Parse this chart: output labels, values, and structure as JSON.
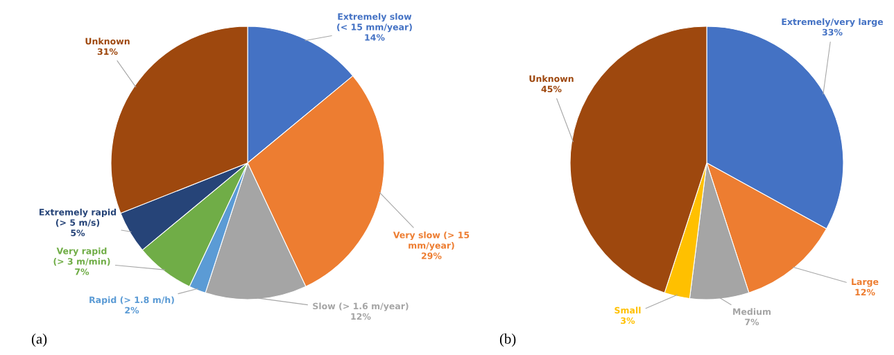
{
  "chart_data": [
    {
      "type": "pie",
      "title": "(a)",
      "categories": [
        "Extremely slow\n(< 15 mm/year)",
        "Very slow (> 15\nmm/year)",
        "Slow (> 1.6 m/year)",
        "Rapid (> 1.8 m/h)",
        "Very rapid\n(> 3 m/min)",
        "Extremely rapid\n(> 5 m/s)",
        "Unknown"
      ],
      "values": [
        14,
        29,
        12,
        2,
        7,
        5,
        31
      ],
      "value_labels": [
        "14%",
        "29%",
        "12%",
        "2%",
        "7%",
        "5%",
        "31%"
      ],
      "colors": [
        "#4472c4",
        "#ed7d31",
        "#a5a5a5",
        "#5b9bd5",
        "#70ad47",
        "#264478",
        "#9e480e"
      ]
    },
    {
      "type": "pie",
      "title": "(b)",
      "categories": [
        "Extremely/very large",
        "Large",
        "Medium",
        "Small",
        "Unknown"
      ],
      "values": [
        33,
        12,
        7,
        3,
        45
      ],
      "value_labels": [
        "33%",
        "12%",
        "7%",
        "3%",
        "45%"
      ],
      "colors": [
        "#4472c4",
        "#ed7d31",
        "#a5a5a5",
        "#ffc000",
        "#9e480e"
      ]
    }
  ]
}
